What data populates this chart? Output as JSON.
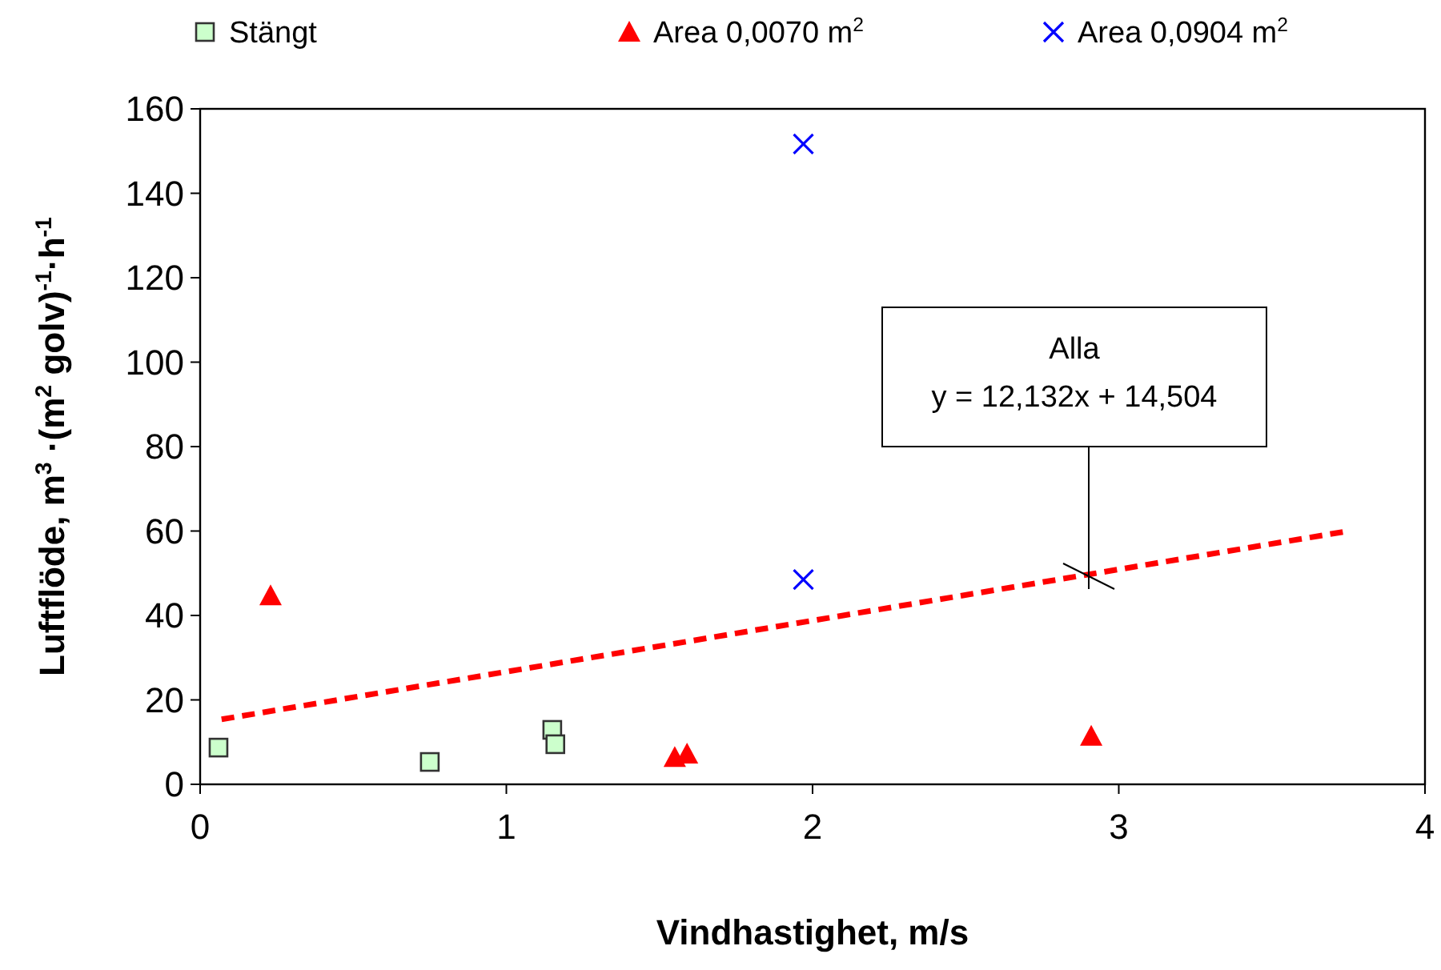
{
  "chart_data": {
    "type": "scatter",
    "xlabel": "Vindhastighet, m/s",
    "ylabel": "Luftflöde, m$^{3}$ ·(m$^{2}$ golv)$^{-1}$·h$^{-1}$",
    "xlim": [
      0,
      4
    ],
    "xticks": [
      0,
      1,
      2,
      3,
      4
    ],
    "ylim": [
      0,
      160
    ],
    "yticks": [
      0,
      20,
      40,
      60,
      80,
      100,
      120,
      140,
      160
    ],
    "grid": false,
    "legend": "top",
    "series": [
      {
        "name": "Stängt",
        "color": "#ccffcc",
        "marker": "square",
        "x": [
          0.06,
          0.75,
          1.15,
          1.16
        ],
        "values": [
          8.7,
          5.3,
          12.9,
          9.5
        ]
      },
      {
        "name": "Area 0,0070 m$^{2}$",
        "color": "#ff0000",
        "marker": "triangle",
        "x": [
          0.23,
          1.55,
          1.59,
          2.91
        ],
        "values": [
          44.7,
          6.4,
          7.2,
          11.4
        ]
      },
      {
        "name": "Area 0,0904 m$^{2}$",
        "color": "#0000ff",
        "marker": "cross",
        "x": [
          1.97,
          1.97
        ],
        "values": [
          151.7,
          48.5
        ]
      },
      {
        "type": "line",
        "color": "#ff0000",
        "line_style": "dashed",
        "marker": "none",
        "x": [
          0.07,
          3.75
        ],
        "values": [
          15.4,
          60
        ]
      }
    ],
    "annotations": [
      "Alla\ny = 12,132x + 14,504"
    ]
  }
}
